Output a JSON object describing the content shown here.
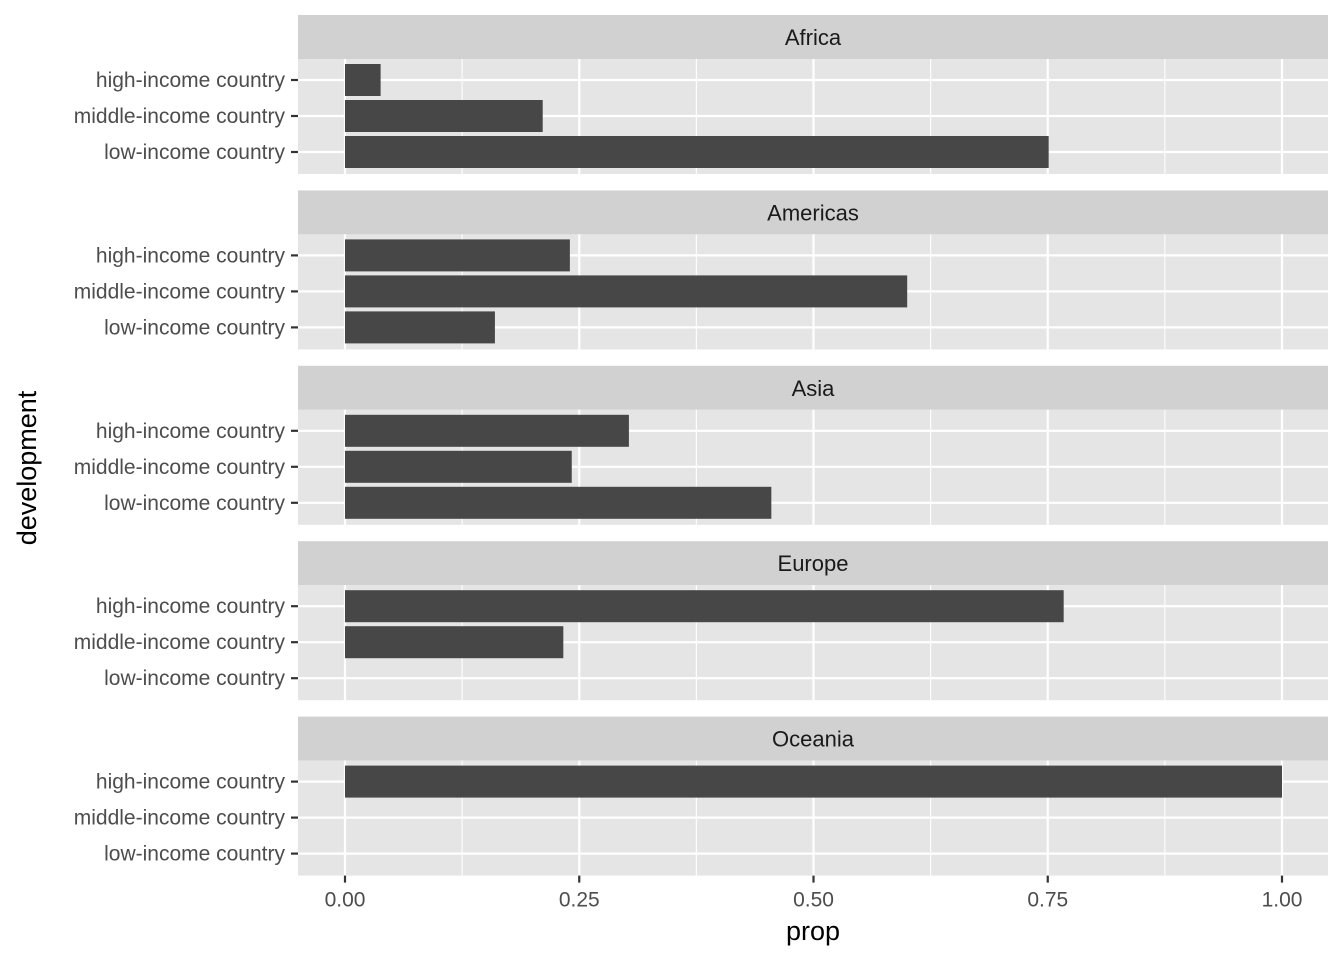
{
  "chart_data": {
    "type": "bar",
    "orientation": "horizontal",
    "facet_by": "continent",
    "xlabel": "prop",
    "ylabel": "development",
    "xlim": [
      0,
      1
    ],
    "x_ticks": [
      "0.00",
      "0.25",
      "0.50",
      "0.75",
      "1.00"
    ],
    "x_tick_values": [
      0,
      0.25,
      0.5,
      0.75,
      1
    ],
    "categories": [
      "high-income country",
      "middle-income country",
      "low-income country"
    ],
    "grid": true,
    "colors": {
      "bar": "#474747",
      "panel_background": "#e5e5e5",
      "strip_background": "#d1d1d1",
      "grid": "#ffffff"
    },
    "panels": [
      {
        "title": "Africa",
        "values": [
          0.038,
          0.211,
          0.751
        ]
      },
      {
        "title": "Americas",
        "values": [
          0.24,
          0.6,
          0.16
        ]
      },
      {
        "title": "Asia",
        "values": [
          0.303,
          0.242,
          0.455
        ]
      },
      {
        "title": "Europe",
        "values": [
          0.767,
          0.233,
          0.0
        ]
      },
      {
        "title": "Oceania",
        "values": [
          1.0,
          0.0,
          0.0
        ]
      }
    ]
  }
}
